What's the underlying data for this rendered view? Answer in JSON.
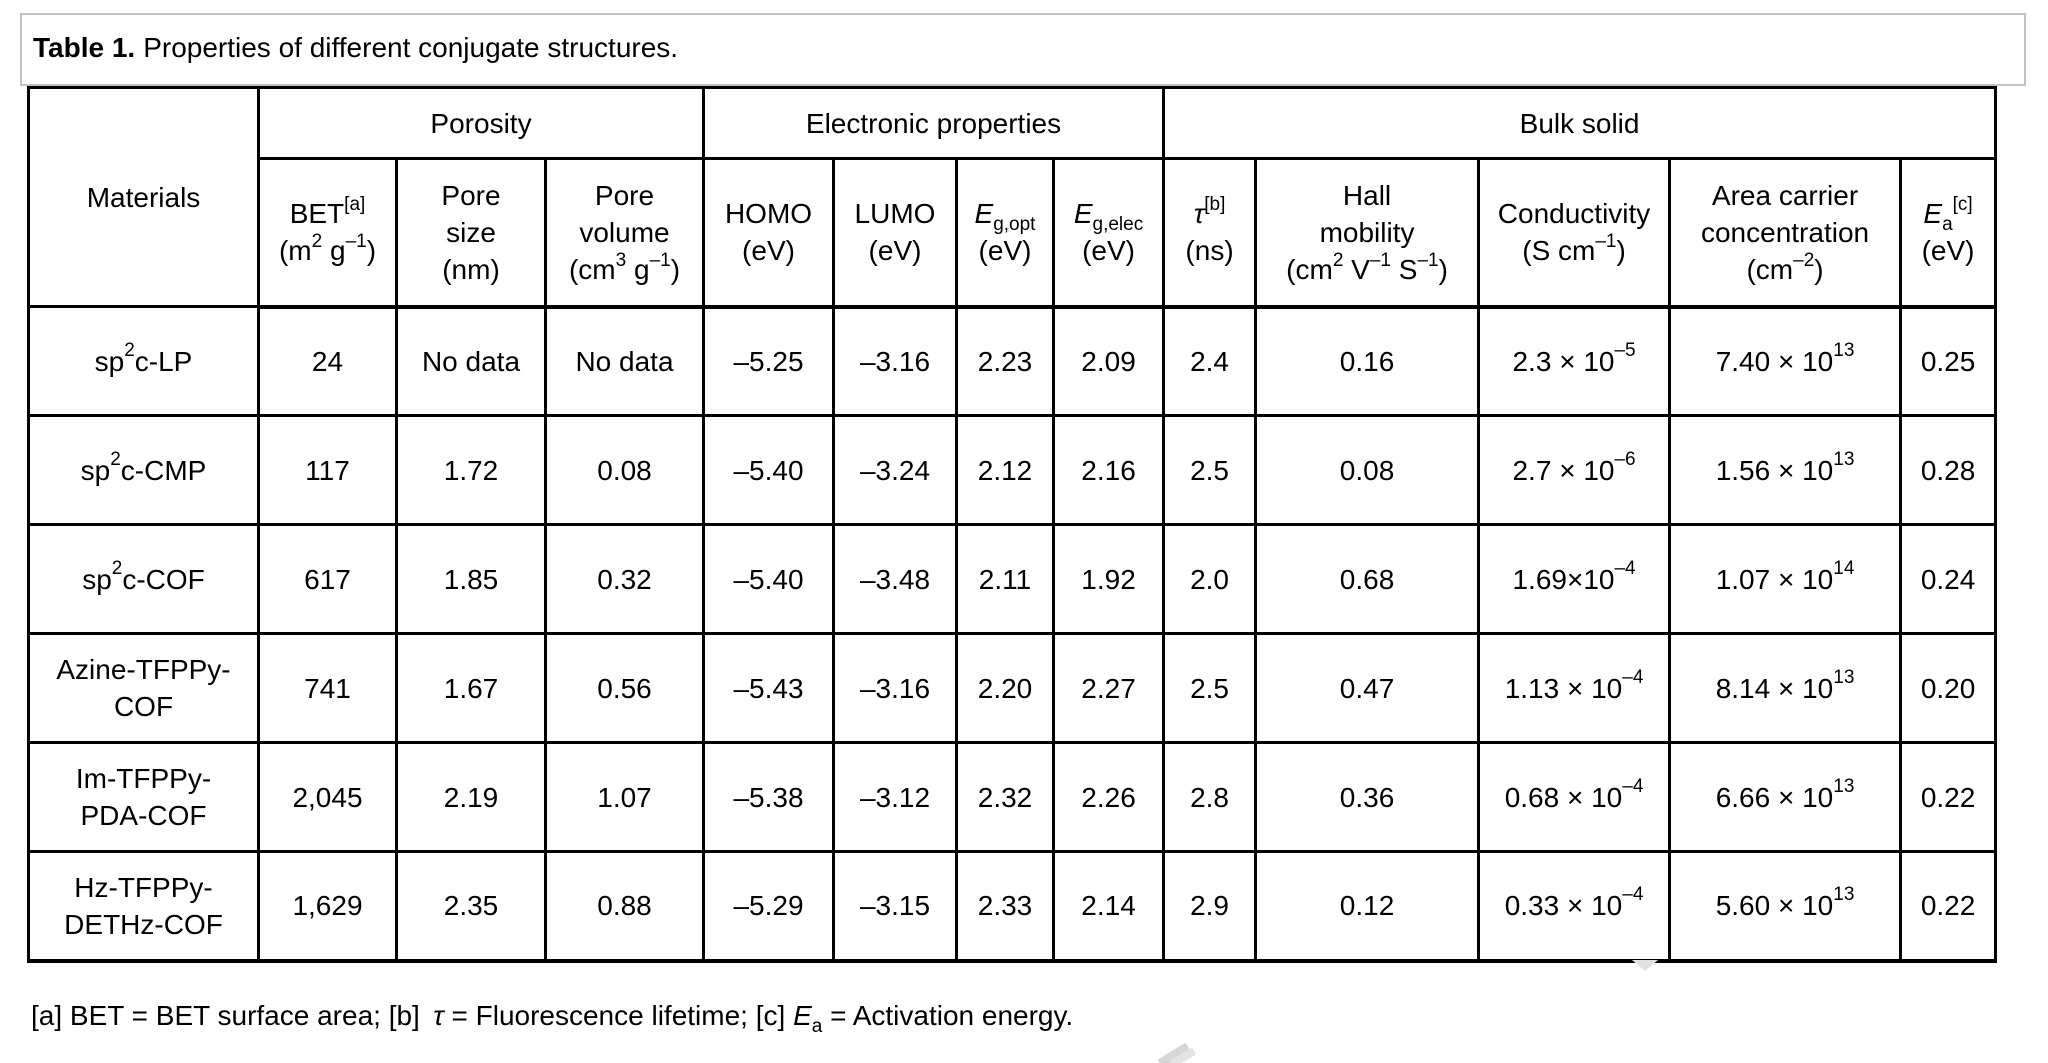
{
  "title": {
    "label": "Table 1.",
    "text": "Properties of different conjugate structures."
  },
  "table": {
    "corner_header": "Materials",
    "groups": [
      {
        "label": "Porosity",
        "span": 3
      },
      {
        "label": "Electronic properties",
        "span": 4
      },
      {
        "label": "Bulk solid",
        "span": 5
      }
    ],
    "columns": [
      {
        "id": "bet",
        "label": "BET^{[a]}\n(m^{2} g^{–1})"
      },
      {
        "id": "pore-size",
        "label": "Pore\nsize\n(nm)"
      },
      {
        "id": "pore-volume",
        "label": "Pore\nvolume\n(cm^{3} g^{–1})"
      },
      {
        "id": "homo",
        "label": "HOMO\n(eV)"
      },
      {
        "id": "lumo",
        "label": "LUMO\n(eV)"
      },
      {
        "id": "eg-opt",
        "label": "*E*_{g,opt}\n(eV)"
      },
      {
        "id": "eg-elec",
        "label": "*E*_{g,elec}\n(eV)"
      },
      {
        "id": "tau",
        "label": "*τ*^{[b]}\n(ns)"
      },
      {
        "id": "hall-mobility",
        "label": "Hall\nmobility\n(cm^{2} V^{–1} S^{–1})"
      },
      {
        "id": "conductivity",
        "label": "Conductivity\n(S cm^{–1})"
      },
      {
        "id": "area-carrier-concentration",
        "label": "Area carrier\nconcentration\n(cm^{–2})"
      },
      {
        "id": "ea",
        "label": "*E*_{a}^{[c]}\n(eV)"
      }
    ],
    "rows": [
      {
        "id": "sp2c-lp",
        "material": "sp^{2}c-LP",
        "values": [
          "24",
          "No data",
          "No data",
          "–5.25",
          "–3.16",
          "2.23",
          "2.09",
          "2.4",
          "0.16",
          "2.3 × 10^{–5}",
          "7.40 × 10^{13}",
          "0.25"
        ]
      },
      {
        "id": "sp2c-cmp",
        "material": "sp^{2}c-CMP",
        "values": [
          "117",
          "1.72",
          "0.08",
          "–5.40",
          "–3.24",
          "2.12",
          "2.16",
          "2.5",
          "0.08",
          "2.7 × 10^{–6}",
          "1.56 × 10^{13}",
          "0.28"
        ]
      },
      {
        "id": "sp2c-cof",
        "material": "sp^{2}c-COF",
        "values": [
          "617",
          "1.85",
          "0.32",
          "–5.40",
          "–3.48",
          "2.11",
          "1.92",
          "2.0",
          "0.68",
          "1.69×10^{–4}",
          "1.07 × 10^{14}",
          "0.24"
        ]
      },
      {
        "id": "azine-tfppy-cof",
        "material": "Azine-TFPPy-\nCOF",
        "values": [
          "741",
          "1.67",
          "0.56",
          "–5.43",
          "–3.16",
          "2.20",
          "2.27",
          "2.5",
          "0.47",
          "1.13 × 10^{–4}",
          "8.14 × 10^{13}",
          "0.20"
        ]
      },
      {
        "id": "im-tfppy-pda-cof",
        "material": "Im-TFPPy-\nPDA-COF",
        "values": [
          "2,045",
          "2.19",
          "1.07",
          "–5.38",
          "–3.12",
          "2.32",
          "2.26",
          "2.8",
          "0.36",
          "0.68 × 10^{–4}",
          "6.66 × 10^{13}",
          "0.22"
        ]
      },
      {
        "id": "hz-tfppy-dethz-cof",
        "material": "Hz-TFPPy-\nDETHz-COF",
        "values": [
          "1,629",
          "2.35",
          "0.88",
          "–5.29",
          "–3.15",
          "2.33",
          "2.14",
          "2.9",
          "0.12",
          "0.33 × 10^{–4}",
          "5.60 × 10^{13}",
          "0.22"
        ]
      }
    ]
  },
  "footnote": "[a] BET = BET surface area; [b]  *τ* = Fluorescence lifetime; [c] *E*_{a} = Activation energy."
}
